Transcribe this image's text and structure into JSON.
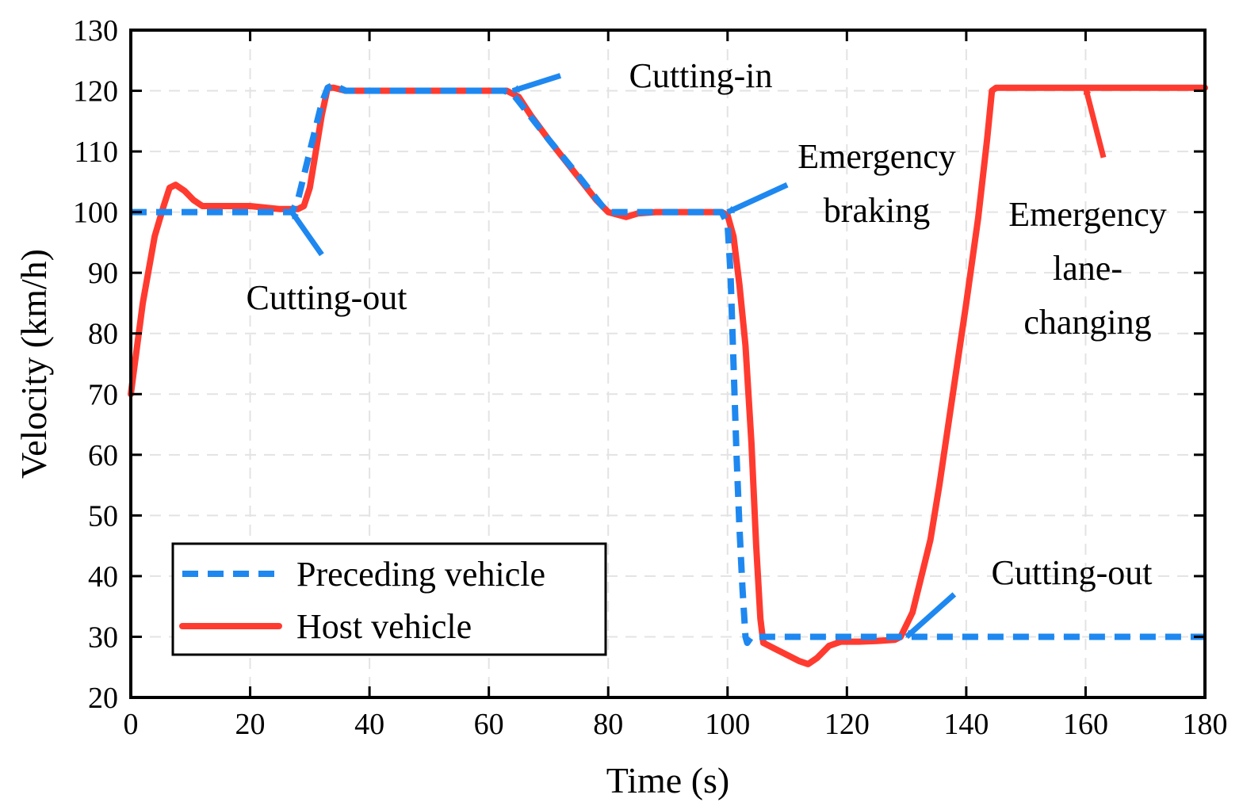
{
  "chart_data": {
    "type": "line",
    "title": "",
    "xlabel": "Time (s)",
    "ylabel": "Velocity (km/h)",
    "xlim": [
      0,
      180
    ],
    "ylim": [
      20,
      130
    ],
    "xticks": [
      0,
      20,
      40,
      60,
      80,
      100,
      120,
      140,
      160,
      180
    ],
    "yticks": [
      20,
      30,
      40,
      50,
      60,
      70,
      80,
      90,
      100,
      110,
      120,
      130
    ],
    "grid": true,
    "legend_position": "bottom-left",
    "series": [
      {
        "name": "Preceding vehicle",
        "color": "#1e88f0",
        "style": "dashed",
        "points": [
          [
            0,
            100
          ],
          [
            5,
            100
          ],
          [
            10,
            100
          ],
          [
            15,
            100
          ],
          [
            20,
            100
          ],
          [
            27,
            100
          ],
          [
            28,
            102
          ],
          [
            30,
            110
          ],
          [
            32,
            118
          ],
          [
            33,
            120.5
          ],
          [
            34,
            121
          ],
          [
            36,
            120
          ],
          [
            40,
            120
          ],
          [
            50,
            120
          ],
          [
            60,
            120
          ],
          [
            62.5,
            120
          ],
          [
            64,
            119.5
          ],
          [
            66,
            117
          ],
          [
            70,
            112
          ],
          [
            75,
            106
          ],
          [
            79,
            101
          ],
          [
            80,
            100
          ],
          [
            81,
            100
          ],
          [
            85,
            100
          ],
          [
            90,
            100
          ],
          [
            95,
            100
          ],
          [
            99,
            100
          ],
          [
            100,
            98
          ],
          [
            100.5,
            90
          ],
          [
            101,
            75
          ],
          [
            101.5,
            60
          ],
          [
            102,
            48
          ],
          [
            102.5,
            38
          ],
          [
            103,
            30
          ],
          [
            103.3,
            29
          ],
          [
            104,
            30
          ],
          [
            110,
            30
          ],
          [
            120,
            30
          ],
          [
            130,
            30
          ],
          [
            140,
            30
          ],
          [
            150,
            30
          ],
          [
            160,
            30
          ],
          [
            170,
            30
          ],
          [
            180,
            30
          ]
        ]
      },
      {
        "name": "Host vehicle",
        "color": "#ff3b30",
        "style": "solid",
        "points": [
          [
            0,
            70
          ],
          [
            2,
            85
          ],
          [
            4,
            96
          ],
          [
            5.5,
            101
          ],
          [
            6.5,
            104
          ],
          [
            7.5,
            104.5
          ],
          [
            9,
            103.5
          ],
          [
            10.5,
            102
          ],
          [
            12,
            101
          ],
          [
            15,
            101
          ],
          [
            20,
            101
          ],
          [
            25,
            100.5
          ],
          [
            28,
            100.5
          ],
          [
            29,
            101
          ],
          [
            30,
            104
          ],
          [
            31,
            110
          ],
          [
            32,
            116
          ],
          [
            33,
            120.5
          ],
          [
            34,
            120.5
          ],
          [
            36,
            120
          ],
          [
            40,
            120
          ],
          [
            50,
            120
          ],
          [
            60,
            120
          ],
          [
            62,
            120
          ],
          [
            63,
            120
          ],
          [
            65,
            119
          ],
          [
            67,
            116
          ],
          [
            70,
            112
          ],
          [
            74,
            107
          ],
          [
            78,
            102
          ],
          [
            80,
            100
          ],
          [
            83,
            99.2
          ],
          [
            85,
            99.8
          ],
          [
            88,
            100
          ],
          [
            95,
            100
          ],
          [
            99,
            100
          ],
          [
            100,
            99.5
          ],
          [
            101,
            96
          ],
          [
            102,
            88
          ],
          [
            103,
            78
          ],
          [
            104,
            62
          ],
          [
            104.8,
            45
          ],
          [
            105.5,
            33
          ],
          [
            106,
            29
          ],
          [
            108,
            28
          ],
          [
            110,
            27
          ],
          [
            112,
            26
          ],
          [
            113.5,
            25.5
          ],
          [
            115,
            26.5
          ],
          [
            117,
            28.5
          ],
          [
            119,
            29.2
          ],
          [
            122,
            29.2
          ],
          [
            125,
            29.3
          ],
          [
            128,
            29.5
          ],
          [
            129,
            30
          ],
          [
            131,
            34
          ],
          [
            132.5,
            40
          ],
          [
            134,
            46
          ],
          [
            135.5,
            55
          ],
          [
            137,
            65
          ],
          [
            138.5,
            75
          ],
          [
            140,
            85
          ],
          [
            142,
            99
          ],
          [
            143.5,
            112
          ],
          [
            144.3,
            120
          ],
          [
            145,
            120.5
          ],
          [
            150,
            120.5
          ],
          [
            160,
            120.5
          ],
          [
            170,
            120.5
          ],
          [
            180,
            120.5
          ]
        ]
      }
    ],
    "annotations": [
      {
        "lines": [
          "Cutting-out"
        ],
        "color": "#1e88f0",
        "arrow_to": [
          27,
          100
        ],
        "arrow_from": [
          32,
          93
        ]
      },
      {
        "lines": [
          "Cutting-in"
        ],
        "color": "#1e88f0",
        "arrow_to": [
          64,
          120
        ],
        "arrow_from": [
          72,
          122.5
        ]
      },
      {
        "lines": [
          "Emergency",
          "braking"
        ],
        "color": "#1e88f0",
        "arrow_to": [
          100,
          100
        ],
        "arrow_from": [
          110,
          104.5
        ]
      },
      {
        "lines": [
          "Cutting-out"
        ],
        "color": "#1e88f0",
        "arrow_to": [
          130,
          30
        ],
        "arrow_from": [
          138,
          37
        ]
      },
      {
        "lines": [
          "Emergency",
          "lane-",
          "changing"
        ],
        "color": "#ff3b30",
        "arrow_to": [
          160,
          120.5
        ],
        "arrow_from": [
          163,
          109
        ]
      }
    ]
  }
}
